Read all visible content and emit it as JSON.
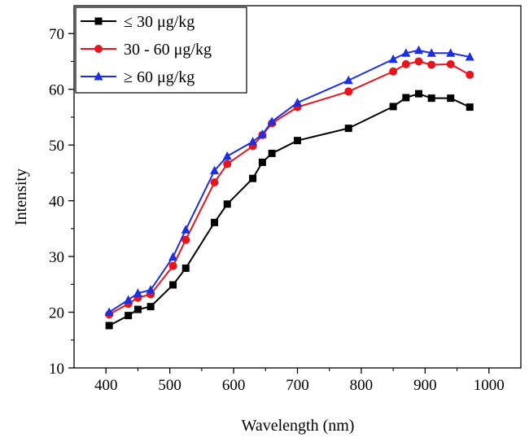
{
  "chart_data": {
    "type": "line",
    "title": "",
    "xlabel": "Wavelength (nm)",
    "ylabel": "Intensity",
    "xlim": [
      350,
      1050
    ],
    "ylim": [
      10,
      75
    ],
    "xticks": [
      400,
      500,
      600,
      700,
      800,
      900,
      1000
    ],
    "yticks": [
      10,
      20,
      30,
      40,
      50,
      60,
      70
    ],
    "grid": false,
    "legend_position": "top-left",
    "x": [
      405,
      435,
      450,
      470,
      505,
      525,
      570,
      590,
      630,
      645,
      660,
      700,
      780,
      850,
      870,
      890,
      910,
      940,
      970
    ],
    "series": [
      {
        "name": "≤ 30 μg/kg",
        "color": "#000000",
        "marker": "square",
        "values": [
          17.6,
          19.4,
          20.5,
          21.0,
          24.9,
          27.9,
          36.1,
          39.4,
          44.0,
          46.9,
          48.5,
          50.8,
          53.0,
          56.9,
          58.5,
          59.2,
          58.4,
          58.4,
          56.8
        ]
      },
      {
        "name": "30 - 60 μg/kg",
        "color": "#e8141c",
        "marker": "circle",
        "values": [
          19.6,
          21.5,
          22.6,
          23.2,
          28.3,
          33.0,
          43.3,
          46.6,
          49.8,
          51.8,
          53.9,
          56.8,
          59.6,
          63.2,
          64.5,
          65.0,
          64.4,
          64.5,
          62.6
        ]
      },
      {
        "name": "≥ 60 μg/kg",
        "color": "#1b2fe0",
        "marker": "triangle",
        "values": [
          20.0,
          22.2,
          23.4,
          24.0,
          29.9,
          34.8,
          45.4,
          48.0,
          50.6,
          51.9,
          54.2,
          57.6,
          61.6,
          65.4,
          66.5,
          67.0,
          66.5,
          66.5,
          65.8
        ]
      }
    ]
  }
}
